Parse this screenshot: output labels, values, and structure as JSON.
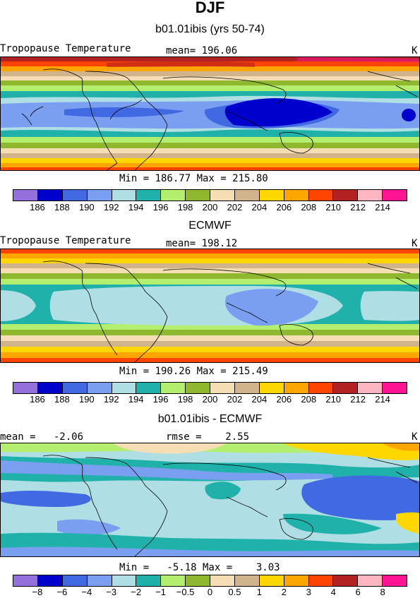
{
  "figure": {
    "title": "DJF"
  },
  "panels": [
    {
      "title": "b01.01ibis (yrs 50-74)",
      "left_label": "Tropopause Temperature",
      "center_label": "mean= 196.06",
      "right_label": "K",
      "stats": "Min = 186.77 Max = 215.80",
      "ticks": [
        "186",
        "188",
        "190",
        "192",
        "194",
        "196",
        "198",
        "200",
        "202",
        "204",
        "206",
        "208",
        "210",
        "212",
        "214"
      ]
    },
    {
      "title": "ECMWF",
      "left_label": "Tropopause Temperature",
      "center_label": "mean= 198.12",
      "right_label": "K",
      "stats": "Min = 190.26 Max = 215.49",
      "ticks": [
        "186",
        "188",
        "190",
        "192",
        "194",
        "196",
        "198",
        "200",
        "202",
        "204",
        "206",
        "208",
        "210",
        "212",
        "214"
      ]
    },
    {
      "title": "b01.01ibis - ECMWF",
      "left_label": "mean =   -2.06",
      "center_label": "rmse =    2.55",
      "right_label": "K",
      "stats": "Min =   -5.18 Max =    3.03",
      "ticks": [
        "−8",
        "−6",
        "−4",
        "−3",
        "−2",
        "−1",
        "−0.5",
        "0",
        "0.5",
        "1",
        "2",
        "3",
        "4",
        "6",
        "8"
      ]
    }
  ],
  "colorbar": {
    "colors": [
      "#9370db",
      "#0000cd",
      "#4169e1",
      "#7b9ff0",
      "#afdfe4",
      "#20b2aa",
      "#b3ee6f",
      "#8fb82e",
      "#f5deb3",
      "#d2b48c",
      "#ffd700",
      "#ffa500",
      "#ff4500",
      "#b22222",
      "#ffb6c1",
      "#ff1493"
    ]
  }
}
